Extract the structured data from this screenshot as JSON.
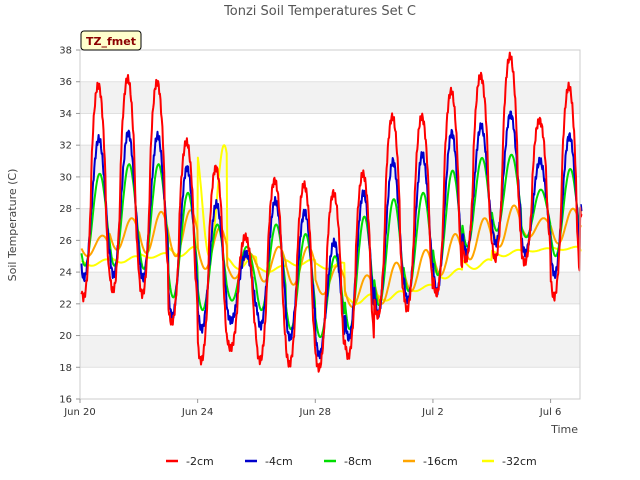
{
  "chart_data": {
    "type": "line",
    "title": "Tonzi Soil Temperatures Set C",
    "xlabel": "Time",
    "ylabel": "Soil Temperature (C)",
    "badge": "TZ_fmet",
    "ylim": [
      16,
      38
    ],
    "xlim": [
      0,
      17
    ],
    "x_unit": "days since Jun 20",
    "yticks": [
      16,
      18,
      20,
      22,
      24,
      26,
      28,
      30,
      32,
      34,
      36,
      38
    ],
    "xticks": [
      {
        "x": 0,
        "label": "Jun 20"
      },
      {
        "x": 4,
        "label": "Jun 24"
      },
      {
        "x": 8,
        "label": "Jun 28"
      },
      {
        "x": 12,
        "label": "Jul 2"
      },
      {
        "x": 16,
        "label": "Jul 6"
      }
    ],
    "grid": true,
    "legend_position": "bottom",
    "days": [
      "Jun 20",
      "Jun 21",
      "Jun 22",
      "Jun 23",
      "Jun 24",
      "Jun 25",
      "Jun 26",
      "Jun 27",
      "Jun 28",
      "Jun 29",
      "Jun 30",
      "Jul 1",
      "Jul 2",
      "Jul 3",
      "Jul 4",
      "Jul 5",
      "Jul 6",
      "Jul 7"
    ],
    "series": [
      {
        "name": "-2cm",
        "color": "#ff0000",
        "daily_max": [
          35.8,
          36.2,
          36.0,
          32.2,
          30.6,
          26.2,
          29.8,
          29.5,
          29.0,
          30.2,
          33.8,
          33.8,
          35.4,
          36.4,
          37.6,
          33.6,
          35.7,
          33.4
        ],
        "daily_min": [
          22.4,
          22.8,
          22.6,
          20.8,
          18.4,
          19.2,
          18.4,
          18.2,
          17.9,
          18.7,
          21.2,
          21.7,
          22.6,
          24.8,
          24.8,
          24.6,
          22.4,
          27.4
        ]
      },
      {
        "name": "-4cm",
        "color": "#0000cc",
        "daily_max": [
          32.4,
          32.8,
          32.6,
          30.6,
          28.3,
          25.2,
          28.5,
          27.8,
          25.9,
          29.0,
          31.0,
          31.4,
          32.8,
          33.2,
          34.0,
          31.0,
          32.6,
          31.0
        ],
        "daily_min": [
          23.6,
          23.8,
          23.6,
          21.2,
          20.4,
          20.9,
          20.6,
          19.8,
          18.8,
          19.8,
          21.4,
          22.2,
          22.8,
          25.2,
          25.8,
          25.2,
          23.8,
          27.6
        ]
      },
      {
        "name": "-8cm",
        "color": "#00dd00",
        "daily_max": [
          30.2,
          30.8,
          30.8,
          29.0,
          27.0,
          25.6,
          27.0,
          26.4,
          25.0,
          27.5,
          28.6,
          29.0,
          30.4,
          31.2,
          31.4,
          29.2,
          30.5,
          29.2
        ],
        "daily_min": [
          24.4,
          24.4,
          24.2,
          22.4,
          21.6,
          22.2,
          21.6,
          20.4,
          19.9,
          20.4,
          21.9,
          22.8,
          23.8,
          25.6,
          26.6,
          26.2,
          25.0,
          27.6
        ]
      },
      {
        "name": "-16cm",
        "color": "#ffa500",
        "daily_max": [
          26.3,
          27.4,
          27.8,
          27.9,
          26.8,
          25.2,
          25.6,
          25.6,
          24.4,
          23.8,
          24.6,
          25.4,
          26.4,
          27.4,
          28.2,
          27.4,
          28.0,
          27.0
        ],
        "daily_min": [
          25.0,
          25.4,
          25.2,
          25.0,
          24.2,
          23.6,
          23.4,
          23.2,
          22.6,
          21.8,
          22.0,
          22.8,
          23.8,
          24.8,
          25.6,
          26.2,
          25.8,
          26.8
        ]
      },
      {
        "name": "-32cm",
        "color": "#ffff00",
        "daily_max": [
          24.8,
          25.0,
          25.2,
          25.6,
          32.0,
          25.0,
          24.4,
          24.8,
          24.6,
          22.6,
          22.8,
          23.2,
          24.2,
          24.8,
          25.4,
          25.5,
          25.6,
          25.4
        ],
        "daily_min": [
          24.4,
          24.6,
          24.9,
          25.0,
          25.0,
          24.2,
          24.0,
          24.4,
          24.2,
          22.0,
          22.2,
          22.8,
          23.6,
          24.2,
          25.0,
          25.3,
          25.4,
          25.2
        ]
      }
    ]
  }
}
